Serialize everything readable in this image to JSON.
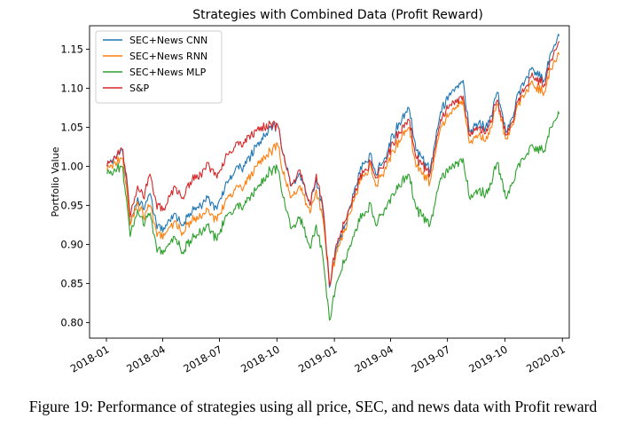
{
  "chart_data": {
    "type": "line",
    "title": "Strategies with Combined Data (Profit Reward)",
    "xlabel": "",
    "ylabel": "Portfolio Value",
    "xlim": [
      "2017-12-05",
      "2020-01-12"
    ],
    "ylim": [
      0.78,
      1.18
    ],
    "grid": false,
    "legend_position": "top-left",
    "x_ticks": [
      {
        "date": "2018-01-01",
        "label": "2018-01"
      },
      {
        "date": "2018-04-01",
        "label": "2018-04"
      },
      {
        "date": "2018-07-01",
        "label": "2018-07"
      },
      {
        "date": "2018-10-01",
        "label": "2018-10"
      },
      {
        "date": "2019-01-01",
        "label": "2019-01"
      },
      {
        "date": "2019-04-01",
        "label": "2019-04"
      },
      {
        "date": "2019-07-01",
        "label": "2019-07"
      },
      {
        "date": "2019-10-01",
        "label": "2019-10"
      },
      {
        "date": "2020-01-01",
        "label": "2020-01"
      }
    ],
    "y_ticks": [
      {
        "value": 0.8,
        "label": "0.80"
      },
      {
        "value": 0.85,
        "label": "0.85"
      },
      {
        "value": 0.9,
        "label": "0.90"
      },
      {
        "value": 0.95,
        "label": "0.95"
      },
      {
        "value": 1.0,
        "label": "1.00"
      },
      {
        "value": 1.05,
        "label": "1.05"
      },
      {
        "value": 1.1,
        "label": "1.10"
      },
      {
        "value": 1.15,
        "label": "1.15"
      }
    ],
    "series": [
      {
        "name": "SEC+News CNN",
        "color": "#1f77b4",
        "points": [
          [
            "2018-01-02",
            1.0
          ],
          [
            "2018-01-15",
            1.012
          ],
          [
            "2018-01-26",
            1.022
          ],
          [
            "2018-02-02",
            0.985
          ],
          [
            "2018-02-08",
            0.925
          ],
          [
            "2018-02-20",
            0.96
          ],
          [
            "2018-03-01",
            0.945
          ],
          [
            "2018-03-12",
            0.965
          ],
          [
            "2018-03-23",
            0.92
          ],
          [
            "2018-04-06",
            0.925
          ],
          [
            "2018-04-20",
            0.94
          ],
          [
            "2018-05-03",
            0.925
          ],
          [
            "2018-05-15",
            0.94
          ],
          [
            "2018-06-01",
            0.95
          ],
          [
            "2018-06-12",
            0.96
          ],
          [
            "2018-06-27",
            0.945
          ],
          [
            "2018-07-10",
            0.975
          ],
          [
            "2018-07-26",
            0.995
          ],
          [
            "2018-08-10",
            1.0
          ],
          [
            "2018-08-29",
            1.025
          ],
          [
            "2018-09-20",
            1.05
          ],
          [
            "2018-10-03",
            1.05
          ],
          [
            "2018-10-11",
            1.015
          ],
          [
            "2018-10-24",
            0.975
          ],
          [
            "2018-11-07",
            0.99
          ],
          [
            "2018-11-23",
            0.95
          ],
          [
            "2018-12-03",
            0.985
          ],
          [
            "2018-12-14",
            0.94
          ],
          [
            "2018-12-24",
            0.845
          ],
          [
            "2019-01-04",
            0.895
          ],
          [
            "2019-01-18",
            0.925
          ],
          [
            "2019-02-01",
            0.965
          ],
          [
            "2019-02-15",
            1.005
          ],
          [
            "2019-03-01",
            1.015
          ],
          [
            "2019-03-08",
            0.99
          ],
          [
            "2019-03-22",
            1.01
          ],
          [
            "2019-04-05",
            1.04
          ],
          [
            "2019-04-30",
            1.075
          ],
          [
            "2019-05-13",
            1.02
          ],
          [
            "2019-06-03",
            0.995
          ],
          [
            "2019-06-20",
            1.07
          ],
          [
            "2019-07-03",
            1.09
          ],
          [
            "2019-07-26",
            1.11
          ],
          [
            "2019-08-05",
            1.045
          ],
          [
            "2019-08-16",
            1.055
          ],
          [
            "2019-09-03",
            1.05
          ],
          [
            "2019-09-19",
            1.095
          ],
          [
            "2019-10-02",
            1.045
          ],
          [
            "2019-10-11",
            1.06
          ],
          [
            "2019-10-28",
            1.105
          ],
          [
            "2019-11-15",
            1.125
          ],
          [
            "2019-12-03",
            1.11
          ],
          [
            "2019-12-13",
            1.145
          ],
          [
            "2019-12-27",
            1.167
          ]
        ]
      },
      {
        "name": "SEC+News RNN",
        "color": "#ff7f0e",
        "points": [
          [
            "2018-01-02",
            0.995
          ],
          [
            "2018-01-15",
            1.005
          ],
          [
            "2018-01-26",
            1.01
          ],
          [
            "2018-02-02",
            0.975
          ],
          [
            "2018-02-08",
            0.925
          ],
          [
            "2018-02-20",
            0.955
          ],
          [
            "2018-03-01",
            0.935
          ],
          [
            "2018-03-12",
            0.95
          ],
          [
            "2018-03-23",
            0.91
          ],
          [
            "2018-04-06",
            0.915
          ],
          [
            "2018-04-20",
            0.93
          ],
          [
            "2018-05-03",
            0.915
          ],
          [
            "2018-05-15",
            0.93
          ],
          [
            "2018-06-01",
            0.935
          ],
          [
            "2018-06-12",
            0.945
          ],
          [
            "2018-06-27",
            0.93
          ],
          [
            "2018-07-10",
            0.955
          ],
          [
            "2018-07-26",
            0.97
          ],
          [
            "2018-08-10",
            0.975
          ],
          [
            "2018-08-29",
            1.0
          ],
          [
            "2018-09-20",
            1.02
          ],
          [
            "2018-10-03",
            1.025
          ],
          [
            "2018-10-11",
            0.99
          ],
          [
            "2018-10-24",
            0.96
          ],
          [
            "2018-11-07",
            0.975
          ],
          [
            "2018-11-23",
            0.94
          ],
          [
            "2018-12-03",
            0.97
          ],
          [
            "2018-12-14",
            0.93
          ],
          [
            "2018-12-24",
            0.85
          ],
          [
            "2019-01-04",
            0.89
          ],
          [
            "2019-01-18",
            0.92
          ],
          [
            "2019-02-01",
            0.955
          ],
          [
            "2019-02-15",
            0.99
          ],
          [
            "2019-03-01",
            1.0
          ],
          [
            "2019-03-08",
            0.975
          ],
          [
            "2019-03-22",
            0.995
          ],
          [
            "2019-04-05",
            1.02
          ],
          [
            "2019-04-30",
            1.05
          ],
          [
            "2019-05-13",
            1.0
          ],
          [
            "2019-06-03",
            0.98
          ],
          [
            "2019-06-20",
            1.05
          ],
          [
            "2019-07-03",
            1.065
          ],
          [
            "2019-07-26",
            1.085
          ],
          [
            "2019-08-05",
            1.03
          ],
          [
            "2019-08-16",
            1.04
          ],
          [
            "2019-09-03",
            1.035
          ],
          [
            "2019-09-19",
            1.08
          ],
          [
            "2019-10-02",
            1.035
          ],
          [
            "2019-10-11",
            1.05
          ],
          [
            "2019-10-28",
            1.09
          ],
          [
            "2019-11-15",
            1.105
          ],
          [
            "2019-12-03",
            1.095
          ],
          [
            "2019-12-13",
            1.125
          ],
          [
            "2019-12-27",
            1.143
          ]
        ]
      },
      {
        "name": "SEC+News MLP",
        "color": "#2ca02c",
        "points": [
          [
            "2018-01-02",
            0.99
          ],
          [
            "2018-01-15",
            0.995
          ],
          [
            "2018-01-26",
            1.0
          ],
          [
            "2018-02-02",
            0.96
          ],
          [
            "2018-02-08",
            0.91
          ],
          [
            "2018-02-20",
            0.945
          ],
          [
            "2018-03-01",
            0.925
          ],
          [
            "2018-03-12",
            0.94
          ],
          [
            "2018-03-23",
            0.89
          ],
          [
            "2018-04-06",
            0.895
          ],
          [
            "2018-04-20",
            0.91
          ],
          [
            "2018-05-03",
            0.89
          ],
          [
            "2018-05-15",
            0.905
          ],
          [
            "2018-06-01",
            0.915
          ],
          [
            "2018-06-12",
            0.925
          ],
          [
            "2018-06-27",
            0.905
          ],
          [
            "2018-07-10",
            0.935
          ],
          [
            "2018-07-26",
            0.945
          ],
          [
            "2018-08-10",
            0.95
          ],
          [
            "2018-08-29",
            0.97
          ],
          [
            "2018-09-20",
            0.995
          ],
          [
            "2018-10-03",
            0.995
          ],
          [
            "2018-10-11",
            0.96
          ],
          [
            "2018-10-24",
            0.92
          ],
          [
            "2018-11-07",
            0.935
          ],
          [
            "2018-11-23",
            0.895
          ],
          [
            "2018-12-03",
            0.925
          ],
          [
            "2018-12-14",
            0.88
          ],
          [
            "2018-12-24",
            0.803
          ],
          [
            "2019-01-04",
            0.85
          ],
          [
            "2019-01-18",
            0.88
          ],
          [
            "2019-02-01",
            0.91
          ],
          [
            "2019-02-15",
            0.94
          ],
          [
            "2019-03-01",
            0.95
          ],
          [
            "2019-03-08",
            0.925
          ],
          [
            "2019-03-22",
            0.945
          ],
          [
            "2019-04-05",
            0.965
          ],
          [
            "2019-04-30",
            0.99
          ],
          [
            "2019-05-13",
            0.945
          ],
          [
            "2019-06-03",
            0.925
          ],
          [
            "2019-06-20",
            0.985
          ],
          [
            "2019-07-03",
            0.995
          ],
          [
            "2019-07-26",
            1.01
          ],
          [
            "2019-08-05",
            0.96
          ],
          [
            "2019-08-16",
            0.97
          ],
          [
            "2019-09-03",
            0.965
          ],
          [
            "2019-09-19",
            1.005
          ],
          [
            "2019-10-02",
            0.96
          ],
          [
            "2019-10-11",
            0.975
          ],
          [
            "2019-10-28",
            1.01
          ],
          [
            "2019-11-15",
            1.025
          ],
          [
            "2019-12-03",
            1.02
          ],
          [
            "2019-12-13",
            1.05
          ],
          [
            "2019-12-27",
            1.067
          ]
        ]
      },
      {
        "name": "S&P",
        "color": "#d62728",
        "points": [
          [
            "2018-01-02",
            1.0
          ],
          [
            "2018-01-15",
            1.012
          ],
          [
            "2018-01-26",
            1.022
          ],
          [
            "2018-02-02",
            0.99
          ],
          [
            "2018-02-08",
            0.935
          ],
          [
            "2018-02-20",
            0.975
          ],
          [
            "2018-03-01",
            0.96
          ],
          [
            "2018-03-12",
            0.99
          ],
          [
            "2018-03-23",
            0.945
          ],
          [
            "2018-04-06",
            0.95
          ],
          [
            "2018-04-20",
            0.975
          ],
          [
            "2018-05-03",
            0.96
          ],
          [
            "2018-05-15",
            0.98
          ],
          [
            "2018-06-01",
            0.99
          ],
          [
            "2018-06-12",
            1.005
          ],
          [
            "2018-06-27",
            0.985
          ],
          [
            "2018-07-10",
            1.01
          ],
          [
            "2018-07-26",
            1.025
          ],
          [
            "2018-08-10",
            1.03
          ],
          [
            "2018-08-29",
            1.045
          ],
          [
            "2018-09-20",
            1.055
          ],
          [
            "2018-10-03",
            1.05
          ],
          [
            "2018-10-11",
            1.015
          ],
          [
            "2018-10-24",
            0.975
          ],
          [
            "2018-11-07",
            0.995
          ],
          [
            "2018-11-23",
            0.95
          ],
          [
            "2018-12-03",
            0.99
          ],
          [
            "2018-12-14",
            0.945
          ],
          [
            "2018-12-24",
            0.848
          ],
          [
            "2019-01-04",
            0.9
          ],
          [
            "2019-01-18",
            0.93
          ],
          [
            "2019-02-01",
            0.96
          ],
          [
            "2019-02-15",
            0.995
          ],
          [
            "2019-03-01",
            1.005
          ],
          [
            "2019-03-08",
            0.985
          ],
          [
            "2019-03-22",
            1.005
          ],
          [
            "2019-04-05",
            1.03
          ],
          [
            "2019-04-30",
            1.06
          ],
          [
            "2019-05-13",
            1.01
          ],
          [
            "2019-06-03",
            0.99
          ],
          [
            "2019-06-20",
            1.06
          ],
          [
            "2019-07-03",
            1.075
          ],
          [
            "2019-07-26",
            1.09
          ],
          [
            "2019-08-05",
            1.04
          ],
          [
            "2019-08-16",
            1.05
          ],
          [
            "2019-09-03",
            1.045
          ],
          [
            "2019-09-19",
            1.085
          ],
          [
            "2019-10-02",
            1.04
          ],
          [
            "2019-10-11",
            1.055
          ],
          [
            "2019-10-28",
            1.095
          ],
          [
            "2019-11-15",
            1.115
          ],
          [
            "2019-12-03",
            1.105
          ],
          [
            "2019-12-13",
            1.135
          ],
          [
            "2019-12-27",
            1.16
          ]
        ]
      }
    ]
  },
  "caption": "Figure 19: Performance of strategies using all price, SEC, and news data with Profit reward"
}
